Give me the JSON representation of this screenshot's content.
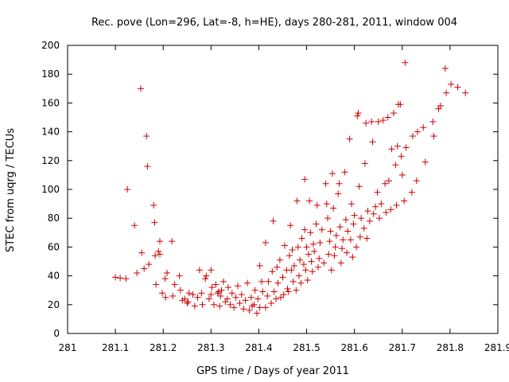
{
  "chart_data": {
    "type": "scatter",
    "title": "Rec. pove (Lon=296, Lat=-8, h=HE), days 280-281, 2011, window 004",
    "xlabel": "GPS time / Days of year 2011",
    "ylabel": "STEC from uqrg / TECUs",
    "xlim": [
      281,
      281.9
    ],
    "ylim": [
      0,
      200
    ],
    "xticks": [
      "281",
      "281.1",
      "281.2",
      "281.3",
      "281.4",
      "281.5",
      "281.6",
      "281.7",
      "281.8",
      "281.9"
    ],
    "yticks": [
      "0",
      "20",
      "40",
      "60",
      "80",
      "100",
      "120",
      "140",
      "160",
      "180",
      "200"
    ],
    "grid": false,
    "legend": "none",
    "marker": "+",
    "color": "#cc0000",
    "series": [
      {
        "points": [
          [
            281.1,
            39
          ],
          [
            281.11,
            38.5
          ],
          [
            281.122,
            38
          ],
          [
            281.125,
            100
          ],
          [
            281.14,
            75
          ],
          [
            281.145,
            42
          ],
          [
            281.153,
            170
          ],
          [
            281.155,
            56
          ],
          [
            281.16,
            45
          ],
          [
            281.165,
            137
          ],
          [
            281.167,
            116
          ],
          [
            281.17,
            48
          ],
          [
            281.18,
            89
          ],
          [
            281.182,
            77
          ],
          [
            281.183,
            54
          ],
          [
            281.185,
            34
          ],
          [
            281.19,
            57
          ],
          [
            281.193,
            64
          ],
          [
            281.193,
            55
          ],
          [
            281.198,
            28
          ],
          [
            281.204,
            38
          ],
          [
            281.205,
            25
          ],
          [
            281.208,
            42
          ],
          [
            281.218,
            64
          ],
          [
            281.22,
            26
          ],
          [
            281.224,
            34
          ],
          [
            281.234,
            40
          ],
          [
            281.236,
            30
          ],
          [
            281.24,
            23
          ],
          [
            281.245,
            24
          ],
          [
            281.25,
            21
          ],
          [
            281.252,
            22
          ],
          [
            281.254,
            28
          ],
          [
            281.262,
            27
          ],
          [
            281.266,
            19
          ],
          [
            281.272,
            25
          ],
          [
            281.276,
            44
          ],
          [
            281.28,
            28
          ],
          [
            281.282,
            20
          ],
          [
            281.288,
            38
          ],
          [
            281.29,
            40
          ],
          [
            281.296,
            24
          ],
          [
            281.3,
            27
          ],
          [
            281.3,
            44
          ],
          [
            281.302,
            32
          ],
          [
            281.306,
            20
          ],
          [
            281.31,
            34
          ],
          [
            281.314,
            28
          ],
          [
            281.316,
            29
          ],
          [
            281.318,
            19
          ],
          [
            281.32,
            26
          ],
          [
            281.322,
            30
          ],
          [
            281.326,
            36
          ],
          [
            281.33,
            22
          ],
          [
            281.334,
            24
          ],
          [
            281.336,
            32
          ],
          [
            281.34,
            20
          ],
          [
            281.344,
            28
          ],
          [
            281.348,
            18
          ],
          [
            281.352,
            25
          ],
          [
            281.356,
            33
          ],
          [
            281.36,
            21
          ],
          [
            281.364,
            27
          ],
          [
            281.368,
            17
          ],
          [
            281.372,
            23
          ],
          [
            281.376,
            35
          ],
          [
            281.38,
            16
          ],
          [
            281.384,
            25
          ],
          [
            281.386,
            19
          ],
          [
            281.39,
            20
          ],
          [
            281.392,
            30
          ],
          [
            281.396,
            14
          ],
          [
            281.398,
            24
          ],
          [
            281.402,
            47
          ],
          [
            281.402,
            18
          ],
          [
            281.406,
            36
          ],
          [
            281.408,
            29
          ],
          [
            281.414,
            63
          ],
          [
            281.414,
            18
          ],
          [
            281.418,
            26
          ],
          [
            281.42,
            36
          ],
          [
            281.426,
            21
          ],
          [
            281.428,
            43
          ],
          [
            281.43,
            78
          ],
          [
            281.432,
            29
          ],
          [
            281.436,
            24
          ],
          [
            281.438,
            46
          ],
          [
            281.44,
            35
          ],
          [
            281.444,
            51
          ],
          [
            281.446,
            25
          ],
          [
            281.45,
            39
          ],
          [
            281.452,
            27
          ],
          [
            281.454,
            61
          ],
          [
            281.458,
            44
          ],
          [
            281.46,
            31
          ],
          [
            281.462,
            29
          ],
          [
            281.464,
            54
          ],
          [
            281.466,
            75
          ],
          [
            281.468,
            44
          ],
          [
            281.47,
            58
          ],
          [
            281.472,
            36
          ],
          [
            281.474,
            47
          ],
          [
            281.478,
            30
          ],
          [
            281.48,
            92
          ],
          [
            281.482,
            60
          ],
          [
            281.484,
            40
          ],
          [
            281.486,
            51
          ],
          [
            281.488,
            35
          ],
          [
            281.49,
            66
          ],
          [
            281.494,
            48
          ],
          [
            281.496,
            72
          ],
          [
            281.496,
            107
          ],
          [
            281.498,
            44
          ],
          [
            281.5,
            60
          ],
          [
            281.502,
            37
          ],
          [
            281.504,
            55
          ],
          [
            281.506,
            92
          ],
          [
            281.508,
            70
          ],
          [
            281.51,
            50
          ],
          [
            281.512,
            43
          ],
          [
            281.514,
            62
          ],
          [
            281.516,
            57
          ],
          [
            281.52,
            76
          ],
          [
            281.522,
            89
          ],
          [
            281.524,
            46
          ],
          [
            281.526,
            52
          ],
          [
            281.528,
            63
          ],
          [
            281.532,
            72
          ],
          [
            281.536,
            49
          ],
          [
            281.54,
            104
          ],
          [
            281.542,
            90
          ],
          [
            281.544,
            80
          ],
          [
            281.546,
            55
          ],
          [
            281.548,
            64
          ],
          [
            281.55,
            71
          ],
          [
            281.552,
            44
          ],
          [
            281.554,
            111
          ],
          [
            281.556,
            87
          ],
          [
            281.558,
            54
          ],
          [
            281.56,
            60
          ],
          [
            281.562,
            68
          ],
          [
            281.566,
            97
          ],
          [
            281.568,
            104
          ],
          [
            281.57,
            74
          ],
          [
            281.572,
            49
          ],
          [
            281.574,
            59
          ],
          [
            281.576,
            65
          ],
          [
            281.58,
            112
          ],
          [
            281.582,
            79
          ],
          [
            281.584,
            56
          ],
          [
            281.586,
            71
          ],
          [
            281.59,
            135
          ],
          [
            281.592,
            65
          ],
          [
            281.594,
            90
          ],
          [
            281.596,
            53
          ],
          [
            281.598,
            76
          ],
          [
            281.6,
            82
          ],
          [
            281.604,
            60
          ],
          [
            281.606,
            151
          ],
          [
            281.608,
            153
          ],
          [
            281.61,
            102
          ],
          [
            281.612,
            67
          ],
          [
            281.614,
            80
          ],
          [
            281.62,
            73
          ],
          [
            281.622,
            118
          ],
          [
            281.624,
            146
          ],
          [
            281.626,
            66
          ],
          [
            281.628,
            85
          ],
          [
            281.632,
            78
          ],
          [
            281.636,
            147
          ],
          [
            281.638,
            133
          ],
          [
            281.64,
            83
          ],
          [
            281.644,
            88
          ],
          [
            281.648,
            98
          ],
          [
            281.65,
            147
          ],
          [
            281.652,
            80
          ],
          [
            281.656,
            90
          ],
          [
            281.66,
            148
          ],
          [
            281.664,
            104
          ],
          [
            281.666,
            84
          ],
          [
            281.67,
            150
          ],
          [
            281.672,
            106
          ],
          [
            281.676,
            86
          ],
          [
            281.678,
            128
          ],
          [
            281.682,
            153
          ],
          [
            281.686,
            117
          ],
          [
            281.688,
            89
          ],
          [
            281.69,
            130
          ],
          [
            281.692,
            159
          ],
          [
            281.696,
            159
          ],
          [
            281.698,
            123
          ],
          [
            281.7,
            110
          ],
          [
            281.704,
            92
          ],
          [
            281.706,
            188
          ],
          [
            281.708,
            129
          ],
          [
            281.72,
            98
          ],
          [
            281.722,
            137
          ],
          [
            281.73,
            106
          ],
          [
            281.732,
            140
          ],
          [
            281.744,
            143
          ],
          [
            281.748,
            119
          ],
          [
            281.764,
            147
          ],
          [
            281.766,
            137
          ],
          [
            281.776,
            156
          ],
          [
            281.78,
            158
          ],
          [
            281.79,
            184
          ],
          [
            281.792,
            167
          ],
          [
            281.802,
            173
          ],
          [
            281.816,
            171
          ],
          [
            281.832,
            167
          ]
        ]
      }
    ]
  }
}
